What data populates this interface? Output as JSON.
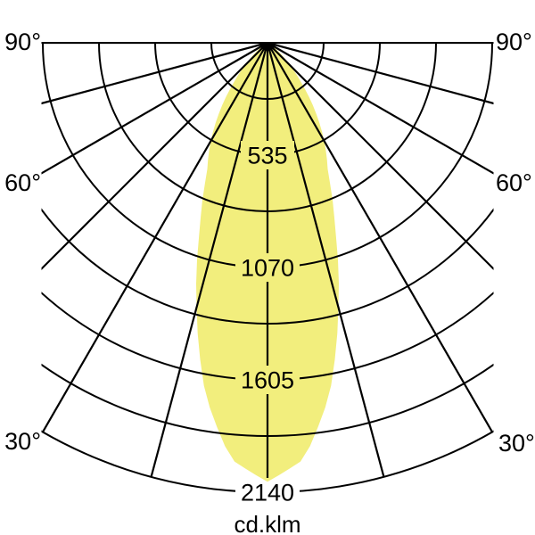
{
  "labels": {
    "left": [
      "90°",
      "60°",
      "30°"
    ],
    "right": [
      "90°",
      "60°",
      "30°"
    ],
    "radial": [
      "535",
      "1070",
      "1605",
      "2140"
    ],
    "unit": "cd.klm"
  },
  "chart_data": {
    "type": "area",
    "style": "polar-photometric-intensity-curve",
    "title": "",
    "unit": "cd.klm",
    "angle_tick_labels_deg": [
      90,
      60,
      30
    ],
    "angle_grid_step_deg": 15,
    "radial_tick_values": [
      535,
      1070,
      1605,
      2140
    ],
    "radial_grid_step": 267.5,
    "r_max": 2140,
    "beam_color": "#F2EE7D",
    "grid_color": "#000000",
    "text_color": "#000000",
    "intensity_profile": {
      "symmetric": true,
      "angles_deg": [
        0,
        5,
        10,
        15,
        20,
        25,
        30,
        35,
        40,
        45,
        50,
        55,
        60,
        63
      ],
      "values_cd_klm": [
        2090,
        1990,
        1700,
        1305,
        940,
        680,
        540,
        395,
        255,
        150,
        83,
        38,
        12,
        0
      ]
    }
  }
}
